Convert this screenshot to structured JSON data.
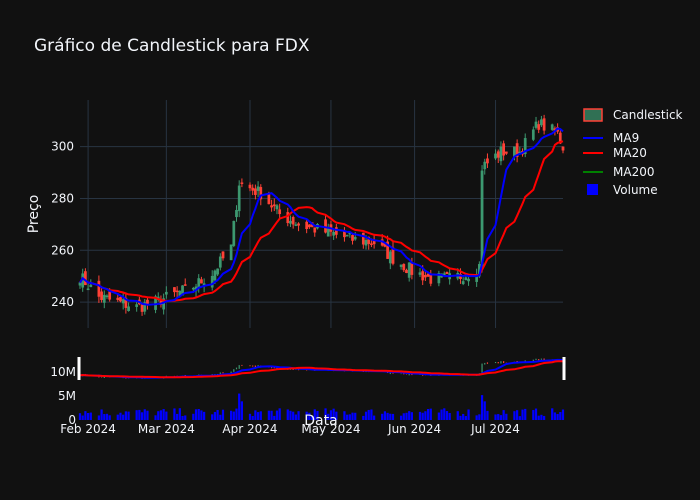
{
  "chart_data": {
    "type": "candlestick",
    "title": "Gráfico de Candlestick para FDX",
    "xlabel": "Data",
    "ylabel": "Preço",
    "x_tick_labels": [
      "Feb 2024",
      "Mar 2024",
      "Apr 2024",
      "May 2024",
      "Jun 2024",
      "Jul 2024"
    ],
    "price_axis": {
      "ticks": [
        240,
        260,
        280,
        300
      ],
      "ylim": [
        230,
        318
      ]
    },
    "volume_axis": {
      "tick_labels": [
        "0",
        "5M",
        "10M"
      ]
    },
    "legend": {
      "placement": "top-right",
      "entries": [
        "Candlestick",
        "MA9",
        "MA20",
        "MA200",
        "Volume"
      ]
    },
    "colors": {
      "background": "#111111",
      "grid": "#283442",
      "increasing": "#3D9970",
      "decreasing": "#FF4136",
      "ma9": "#0000FF",
      "ma20": "#FF0000",
      "ma200": "#008000",
      "volume": "#0000FF"
    },
    "anchors": [
      [
        "2024-01-29",
        250
      ],
      [
        "2024-02-05",
        242
      ],
      [
        "2024-02-12",
        240
      ],
      [
        "2024-02-19",
        238
      ],
      [
        "2024-02-26",
        240
      ],
      [
        "2024-03-04",
        243
      ],
      [
        "2024-03-11",
        246
      ],
      [
        "2024-03-18",
        251
      ],
      [
        "2024-03-25",
        261
      ],
      [
        "2024-03-28",
        286
      ],
      [
        "2024-04-05",
        282
      ],
      [
        "2024-04-12",
        274
      ],
      [
        "2024-04-19",
        270
      ],
      [
        "2024-04-26",
        268
      ],
      [
        "2024-05-03",
        266
      ],
      [
        "2024-05-10",
        264
      ],
      [
        "2024-05-17",
        263
      ],
      [
        "2024-05-24",
        257
      ],
      [
        "2024-05-31",
        252
      ],
      [
        "2024-06-07",
        249
      ],
      [
        "2024-06-14",
        249
      ],
      [
        "2024-06-21",
        251
      ],
      [
        "2024-06-25",
        254
      ],
      [
        "2024-06-26",
        292
      ],
      [
        "2024-07-03",
        298
      ],
      [
        "2024-07-10",
        298
      ],
      [
        "2024-07-17",
        309
      ],
      [
        "2024-07-24",
        305
      ],
      [
        "2024-07-26",
        300
      ]
    ],
    "volume_spikes": [
      [
        "2024-03-28",
        8.5
      ],
      [
        "2024-03-29",
        6
      ],
      [
        "2024-06-26",
        8
      ],
      [
        "2024-06-27",
        6
      ]
    ]
  }
}
